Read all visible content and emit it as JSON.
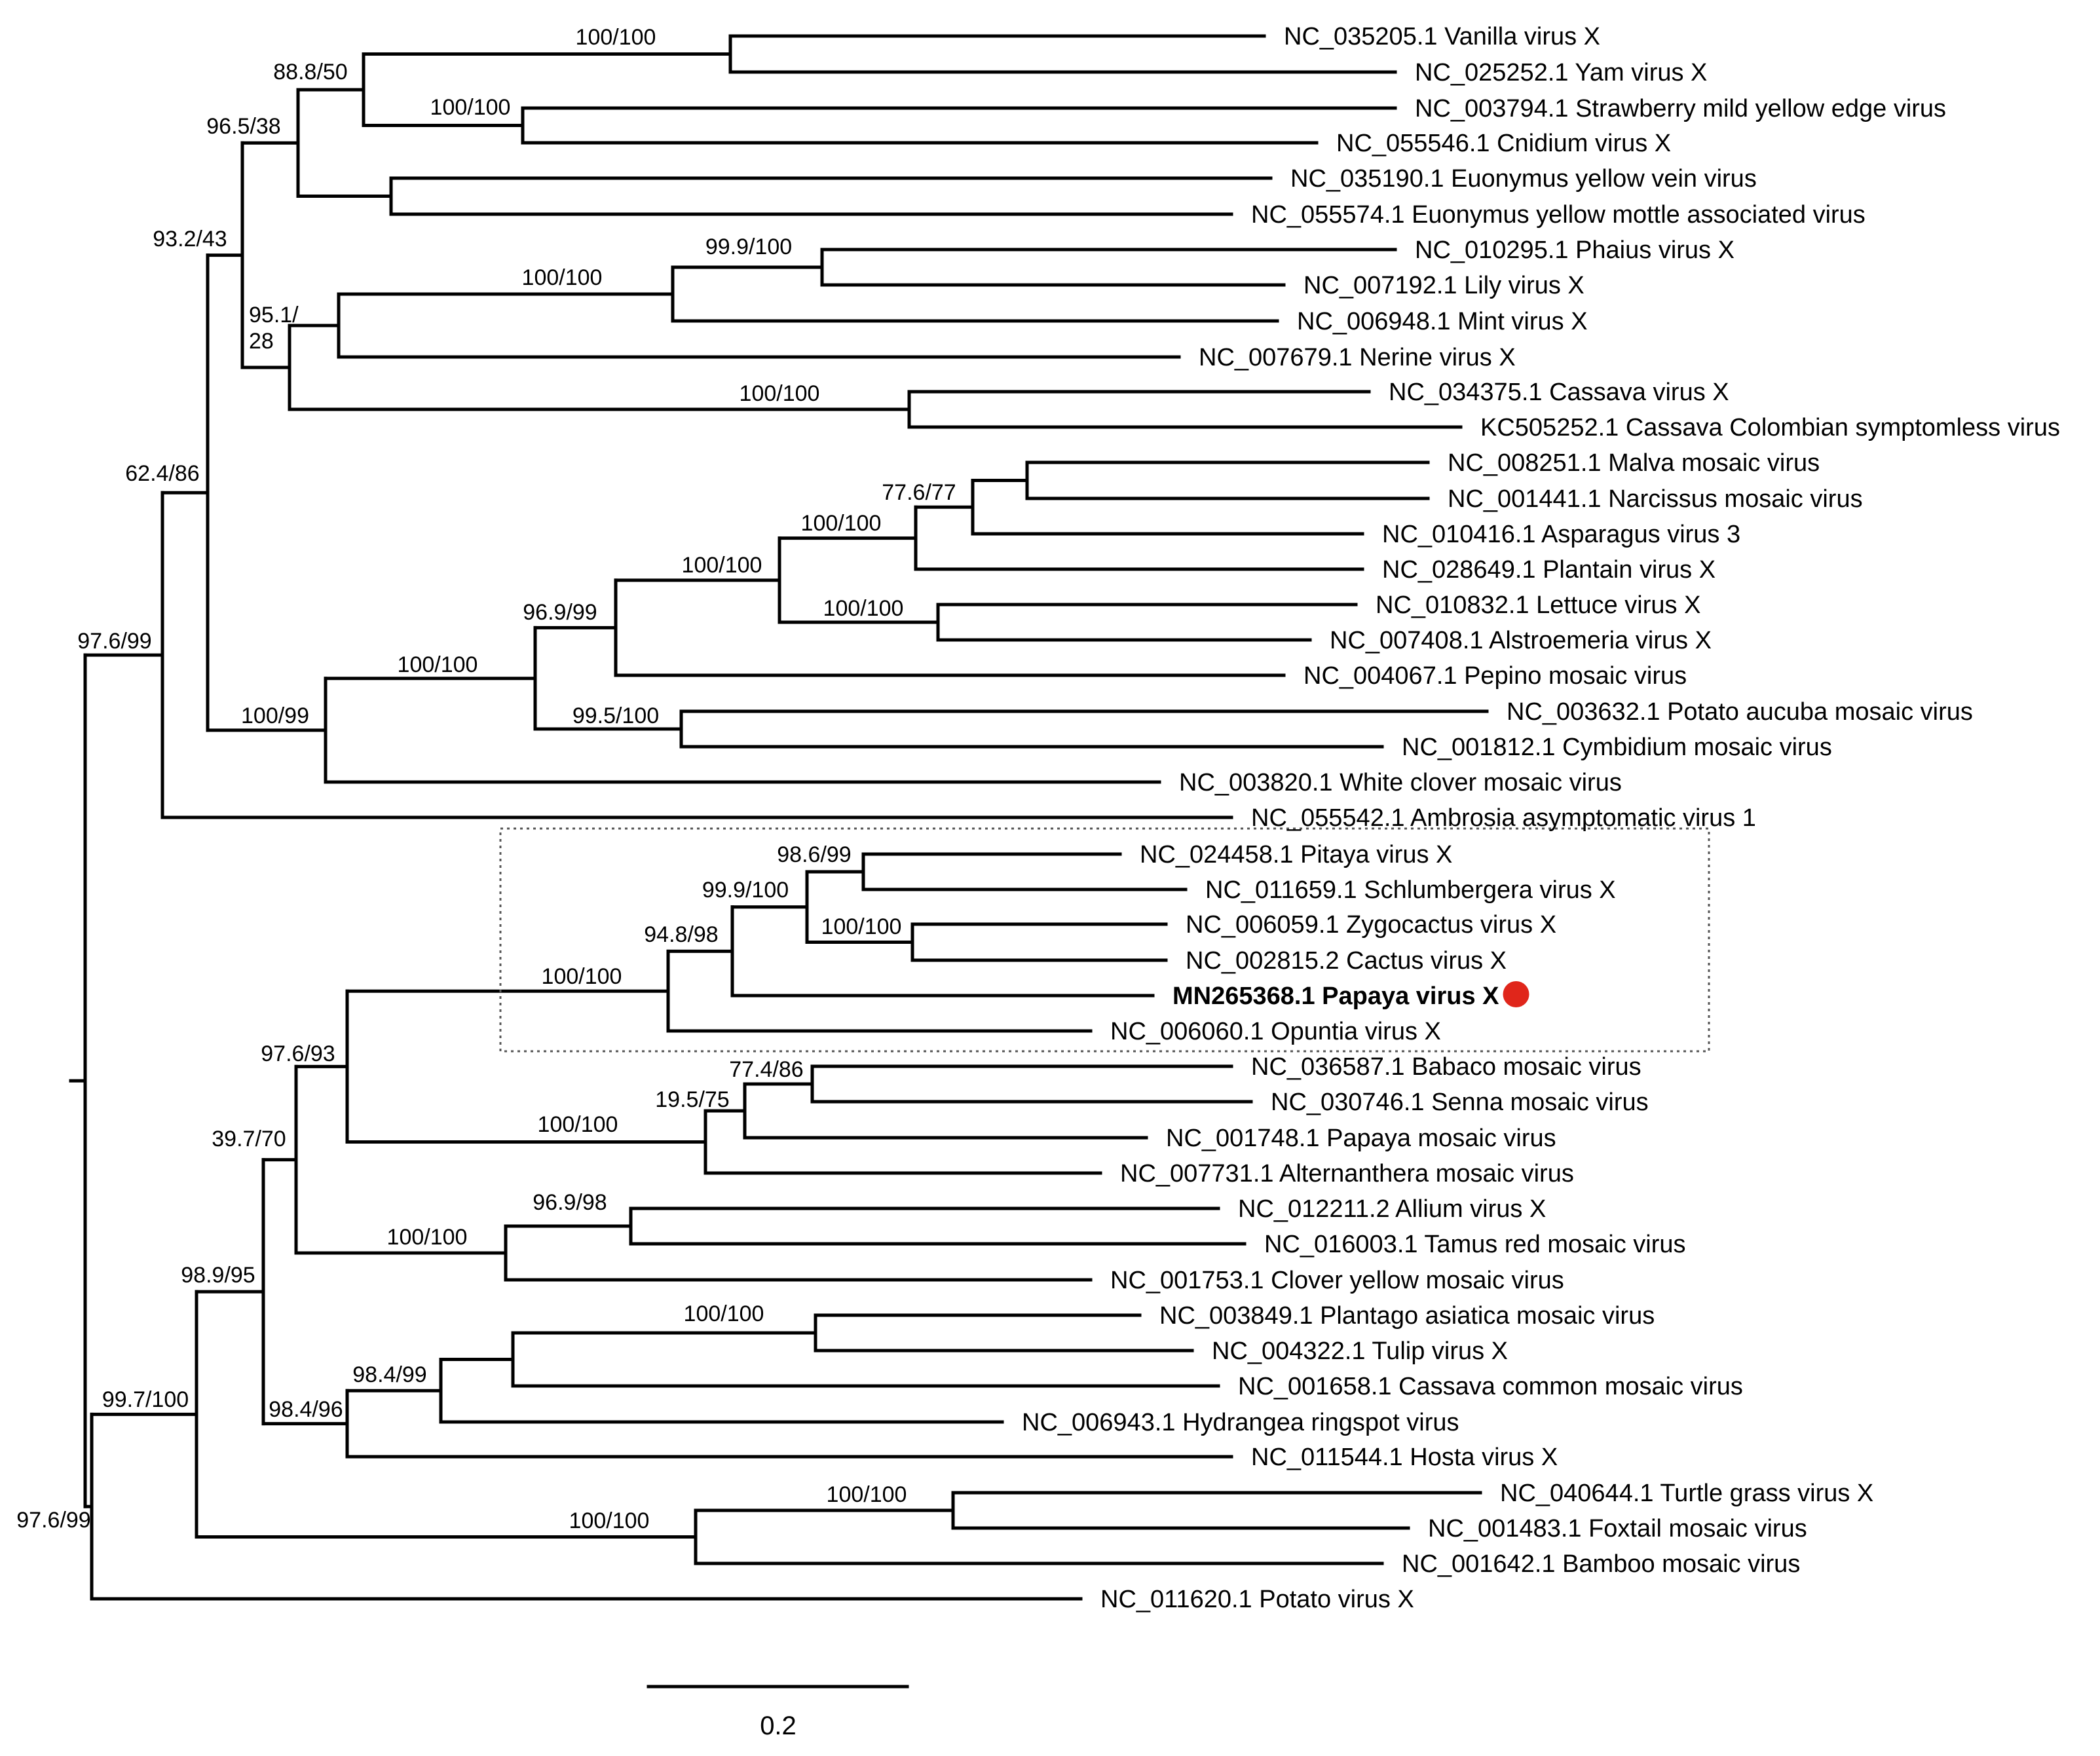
{
  "figure": {
    "type": "phylogenetic-tree",
    "scale_bar": {
      "label": "0.2",
      "value": 0.2
    },
    "highlight_color": "#e0261b",
    "line_color": "#000000",
    "highlighted_clade": [
      "NC_024458.1",
      "NC_011659.1",
      "NC_006059.1",
      "NC_002815.2",
      "MN265368.1",
      "NC_006060.1"
    ]
  },
  "tips": [
    {
      "id": "NC_035205.1",
      "label": "NC_035205.1 Vanilla virus X"
    },
    {
      "id": "NC_025252.1",
      "label": "NC_025252.1 Yam virus X"
    },
    {
      "id": "NC_003794.1",
      "label": "NC_003794.1 Strawberry mild yellow edge virus"
    },
    {
      "id": "NC_055546.1",
      "label": "NC_055546.1 Cnidium virus X"
    },
    {
      "id": "NC_035190.1",
      "label": "NC_035190.1 Euonymus yellow vein virus"
    },
    {
      "id": "NC_055574.1",
      "label": "NC_055574.1 Euonymus yellow mottle associated virus"
    },
    {
      "id": "NC_010295.1",
      "label": "NC_010295.1 Phaius virus X"
    },
    {
      "id": "NC_007192.1",
      "label": "NC_007192.1 Lily virus X"
    },
    {
      "id": "NC_006948.1",
      "label": "NC_006948.1 Mint virus X"
    },
    {
      "id": "NC_007679.1",
      "label": "NC_007679.1 Nerine virus X"
    },
    {
      "id": "NC_034375.1",
      "label": "NC_034375.1 Cassava virus X"
    },
    {
      "id": "KC505252.1",
      "label": "KC505252.1 Cassava Colombian symptomless virus"
    },
    {
      "id": "NC_008251.1",
      "label": "NC_008251.1 Malva mosaic virus"
    },
    {
      "id": "NC_001441.1",
      "label": "NC_001441.1 Narcissus mosaic virus"
    },
    {
      "id": "NC_010416.1",
      "label": "NC_010416.1 Asparagus virus 3"
    },
    {
      "id": "NC_028649.1",
      "label": "NC_028649.1 Plantain virus X"
    },
    {
      "id": "NC_010832.1",
      "label": "NC_010832.1 Lettuce virus X"
    },
    {
      "id": "NC_007408.1",
      "label": "NC_007408.1 Alstroemeria virus X"
    },
    {
      "id": "NC_004067.1",
      "label": "NC_004067.1 Pepino mosaic virus"
    },
    {
      "id": "NC_003632.1",
      "label": "NC_003632.1 Potato aucuba mosaic virus"
    },
    {
      "id": "NC_001812.1",
      "label": "NC_001812.1 Cymbidium mosaic virus"
    },
    {
      "id": "NC_003820.1",
      "label": "NC_003820.1 White clover mosaic virus"
    },
    {
      "id": "NC_055542.1",
      "label": "NC_055542.1 Ambrosia asymptomatic virus 1"
    },
    {
      "id": "NC_024458.1",
      "label": "NC_024458.1 Pitaya virus X"
    },
    {
      "id": "NC_011659.1",
      "label": "NC_011659.1 Schlumbergera virus X"
    },
    {
      "id": "NC_006059.1",
      "label": "NC_006059.1 Zygocactus virus X"
    },
    {
      "id": "NC_002815.2",
      "label": "NC_002815.2 Cactus virus X"
    },
    {
      "id": "MN265368.1",
      "label": "MN265368.1 Papaya virus X",
      "bold": true,
      "marker": "red-dot"
    },
    {
      "id": "NC_006060.1",
      "label": "NC_006060.1 Opuntia virus X"
    },
    {
      "id": "NC_036587.1",
      "label": "NC_036587.1 Babaco mosaic virus"
    },
    {
      "id": "NC_030746.1",
      "label": "NC_030746.1 Senna mosaic virus"
    },
    {
      "id": "NC_001748.1",
      "label": "NC_001748.1 Papaya mosaic virus"
    },
    {
      "id": "NC_007731.1",
      "label": "NC_007731.1 Alternanthera mosaic virus"
    },
    {
      "id": "NC_012211.2",
      "label": "NC_012211.2 Allium virus X"
    },
    {
      "id": "NC_016003.1",
      "label": "NC_016003.1 Tamus red mosaic virus"
    },
    {
      "id": "NC_001753.1",
      "label": "NC_001753.1 Clover yellow mosaic virus"
    },
    {
      "id": "NC_003849.1",
      "label": "NC_003849.1 Plantago asiatica mosaic virus"
    },
    {
      "id": "NC_004322.1",
      "label": "NC_004322.1 Tulip virus X"
    },
    {
      "id": "NC_001658.1",
      "label": "NC_001658.1 Cassava common mosaic virus"
    },
    {
      "id": "NC_006943.1",
      "label": "NC_006943.1 Hydrangea ringspot virus"
    },
    {
      "id": "NC_011544.1",
      "label": "NC_011544.1 Hosta virus X"
    },
    {
      "id": "NC_040644.1",
      "label": "NC_040644.1 Turtle grass virus X"
    },
    {
      "id": "NC_001483.1",
      "label": "NC_001483.1 Foxtail mosaic virus"
    },
    {
      "id": "NC_001642.1",
      "label": "NC_001642.1 Bamboo mosaic virus"
    },
    {
      "id": "NC_011620.1",
      "label": "NC_011620.1 Potato virus X"
    }
  ],
  "support": {
    "vanilla_yam": "100/100",
    "strawberry_cnidium": "100/100",
    "vanilla_cnidium": "88.8/50",
    "vanilla_euonymus": "96.5/38",
    "phaius_lily": "99.9/100",
    "phaius_mint": "100/100",
    "phaius_nerine_a": "95.1/",
    "phaius_nerine_b": "28",
    "cassava_pair": "100/100",
    "upper_group": "93.2/43",
    "malva_narcissus": "77.6/77",
    "malva_plantain": "100/100",
    "lettuce_alstroemeria": "100/100",
    "malva_alstroemeria": "100/100",
    "malva_pepino": "96.9/99",
    "aucuba_cymbidium": "99.5/100",
    "malva_cymbidium": "100/100",
    "malva_whiteclover": "100/99",
    "vanilla_whiteclover": "62.4/86",
    "vanilla_ambrosia": "97.6/99",
    "pitaya_schlumbergera": "98.6/99",
    "zygocactus_cactus": "100/100",
    "pitaya_cactus": "99.9/100",
    "pitaya_papaya": "94.8/98",
    "pitaya_opuntia": "100/100",
    "babaco_senna": "77.4/86",
    "babaco_papayamosaic": "19.5/75",
    "babaco_alternanthera": "100/100",
    "cactus_group": "97.6/93",
    "allium_tamus": "96.9/98",
    "allium_clover": "100/100",
    "cactus_allium": "39.7/70",
    "plantago_tulip": "100/100",
    "plantago_cassavacommon": "98.4/99",
    "plantago_hosta": "98.4/96",
    "lower_group": "98.9/95",
    "turtle_foxtail": "100/100",
    "turtle_bamboo": "100/100",
    "without_potato": "99.7/100",
    "root": "97.6/99"
  }
}
